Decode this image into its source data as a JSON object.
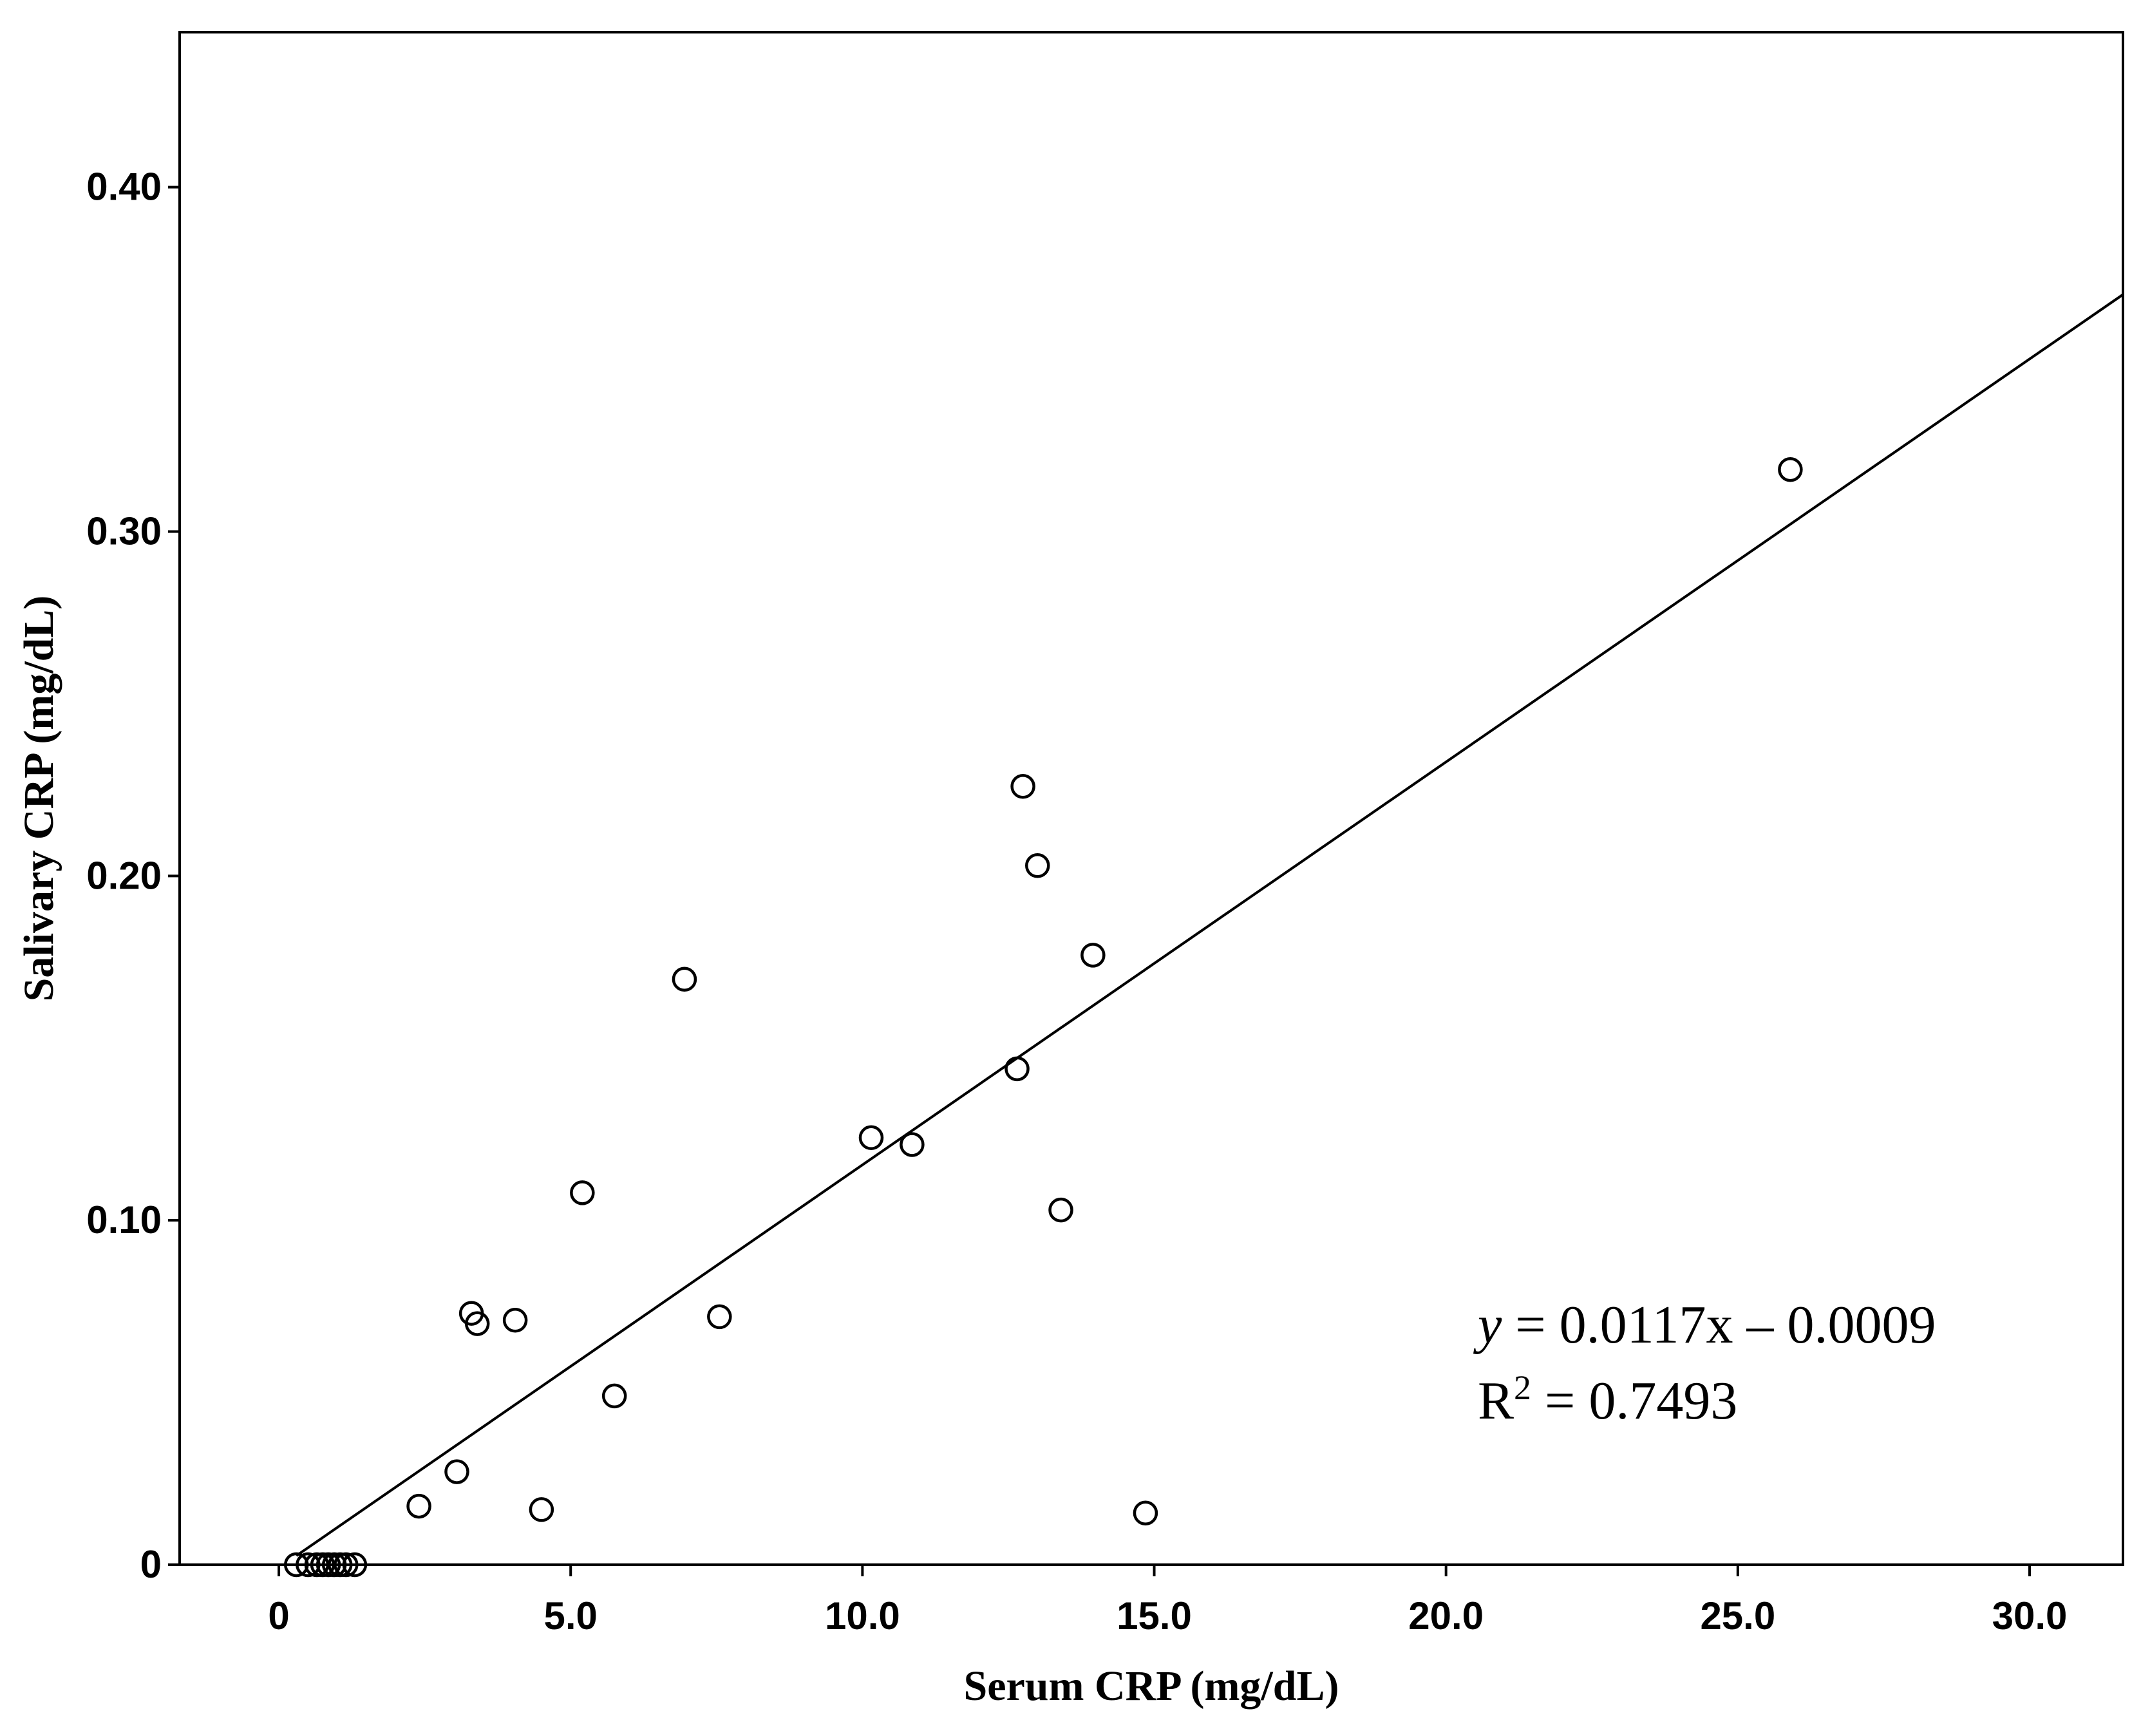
{
  "chart_data": {
    "type": "scatter",
    "xlabel": "Serum CRP (mg/dL)",
    "ylabel": "Salivary CRP (mg/dL)",
    "xlim": [
      -1.7,
      31.6
    ],
    "ylim": [
      0,
      0.445
    ],
    "x_ticks": [
      0,
      5,
      10,
      15,
      20,
      25,
      30
    ],
    "x_tick_labels": [
      "0",
      "5.0",
      "10.0",
      "15.0",
      "20.0",
      "25.0",
      "30.0"
    ],
    "y_ticks": [
      0,
      0.1,
      0.2,
      0.3,
      0.4
    ],
    "y_tick_labels": [
      "0",
      "0.10",
      "0.20",
      "0.30",
      "0.40"
    ],
    "grid": false,
    "legend": "none",
    "points": [
      {
        "x": 0.3,
        "y": 0.0
      },
      {
        "x": 0.5,
        "y": 0.0
      },
      {
        "x": 0.65,
        "y": 0.0
      },
      {
        "x": 0.75,
        "y": 0.0
      },
      {
        "x": 0.85,
        "y": 0.0
      },
      {
        "x": 0.95,
        "y": 0.0
      },
      {
        "x": 1.05,
        "y": 0.0
      },
      {
        "x": 1.15,
        "y": 0.0
      },
      {
        "x": 1.3,
        "y": 0.0
      },
      {
        "x": 2.4,
        "y": 0.017
      },
      {
        "x": 3.05,
        "y": 0.027
      },
      {
        "x": 3.3,
        "y": 0.073
      },
      {
        "x": 3.4,
        "y": 0.07
      },
      {
        "x": 4.05,
        "y": 0.071
      },
      {
        "x": 4.5,
        "y": 0.016
      },
      {
        "x": 5.2,
        "y": 0.108
      },
      {
        "x": 5.75,
        "y": 0.049
      },
      {
        "x": 6.95,
        "y": 0.17
      },
      {
        "x": 7.55,
        "y": 0.072
      },
      {
        "x": 10.15,
        "y": 0.124
      },
      {
        "x": 10.85,
        "y": 0.122
      },
      {
        "x": 12.65,
        "y": 0.144
      },
      {
        "x": 12.75,
        "y": 0.226
      },
      {
        "x": 13.0,
        "y": 0.203
      },
      {
        "x": 13.4,
        "y": 0.103
      },
      {
        "x": 13.95,
        "y": 0.177
      },
      {
        "x": 14.85,
        "y": 0.015
      },
      {
        "x": 25.9,
        "y": 0.318
      }
    ],
    "fit_line": {
      "slope": 0.0117,
      "intercept": -0.0009,
      "x_start": 0.3,
      "x_end": 31.6
    },
    "annotation": {
      "equation_y": "y",
      "equation_rest": " = 0.0117x – 0.0009",
      "r2_label": "R",
      "r2_sup": "2",
      "r2_rest": " = 0.7493"
    }
  }
}
